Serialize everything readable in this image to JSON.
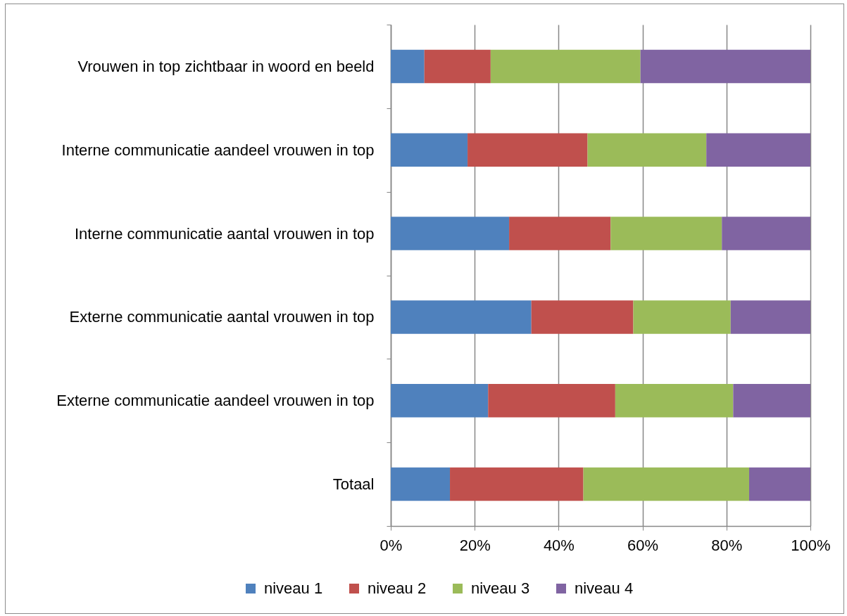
{
  "chart_data": {
    "type": "bar",
    "orientation": "horizontal",
    "stacked": true,
    "categories": [
      "Vrouwen in top zichtbaar in woord en beeld",
      "Interne communicatie aandeel vrouwen in top",
      "Interne communicatie aantal vrouwen in top",
      "Externe communicatie aantal vrouwen in top",
      "Externe communicatie aandeel vrouwen in top",
      "Totaal"
    ],
    "series": [
      {
        "name": "niveau 1",
        "color": "#4f81bd",
        "values": [
          8.0,
          18.3,
          28.2,
          33.5,
          23.2,
          14.1
        ]
      },
      {
        "name": "niveau 2",
        "color": "#c0504d",
        "values": [
          15.8,
          28.6,
          24.2,
          24.3,
          30.3,
          31.8
        ]
      },
      {
        "name": "niveau 3",
        "color": "#9bbb59",
        "values": [
          35.7,
          28.3,
          26.5,
          23.2,
          28.1,
          39.5
        ]
      },
      {
        "name": "niveau 4",
        "color": "#8064a2",
        "values": [
          40.5,
          24.8,
          21.1,
          19.0,
          18.4,
          14.6
        ]
      }
    ],
    "xlim": [
      0,
      100
    ],
    "xticks": [
      {
        "value": 0,
        "label": "0%"
      },
      {
        "value": 20,
        "label": "20%"
      },
      {
        "value": 40,
        "label": "40%"
      },
      {
        "value": 60,
        "label": "60%"
      },
      {
        "value": 80,
        "label": "80%"
      },
      {
        "value": 100,
        "label": "100%"
      }
    ],
    "grid": "x",
    "legend": "bottom"
  }
}
